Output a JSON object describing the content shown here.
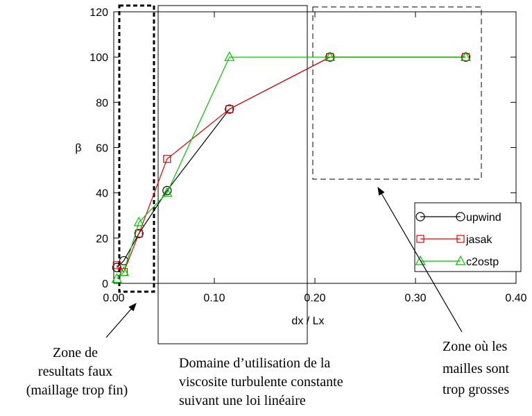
{
  "chart_data": {
    "type": "line",
    "xlabel": "dx / Lx",
    "ylabel": "β",
    "xlim": [
      0.0,
      0.4
    ],
    "ylim": [
      0,
      120
    ],
    "xticks": [
      "0.00",
      "0.10",
      "0.20",
      "0.30",
      "0.40"
    ],
    "yticks": [
      "0",
      "20",
      "40",
      "60",
      "80",
      "100",
      "120"
    ],
    "grid": false,
    "legend_position": "bottom-right",
    "series": [
      {
        "name": "upwind",
        "color": "#000000",
        "marker": "circle",
        "x": [
          0.003,
          0.01,
          0.025,
          0.053,
          0.115,
          0.215,
          0.35
        ],
        "y": [
          7,
          10,
          22,
          41,
          77,
          100,
          100
        ]
      },
      {
        "name": "jasak",
        "color": "#e00000",
        "marker": "square",
        "x": [
          0.003,
          0.01,
          0.025,
          0.053,
          0.115,
          0.215,
          0.35
        ],
        "y": [
          8,
          5,
          22,
          55,
          77,
          100,
          100
        ]
      },
      {
        "name": "c2ostp",
        "color": "#00c000",
        "marker": "triangle",
        "x": [
          0.003,
          0.01,
          0.025,
          0.053,
          0.115,
          0.215,
          0.35
        ],
        "y": [
          2,
          5,
          27,
          40,
          100,
          100,
          100
        ]
      }
    ]
  },
  "annotations": {
    "left_zone_lines": [
      "Zone de",
      "resultats faux",
      "(maillage trop fin)"
    ],
    "middle_zone_lines": [
      "Domaine d’utilisation de la",
      "viscosite turbulente constante",
      "suivant une loi linéaire"
    ],
    "right_zone_lines": [
      "Zone où les",
      "mailles sont",
      "trop grosses"
    ]
  }
}
